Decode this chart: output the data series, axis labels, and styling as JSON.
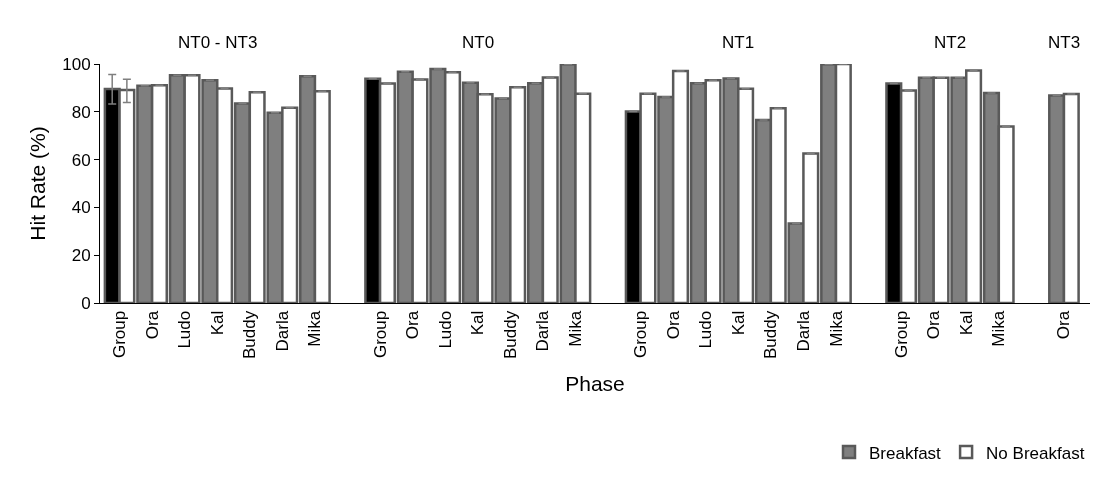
{
  "chart_data": {
    "type": "bar",
    "xlabel": "Phase",
    "ylabel": "Hit Rate (%)",
    "annotations": [
      "NT0 - NT3",
      "NT0",
      "NT1",
      "NT2",
      "NT3"
    ],
    "categories": [
      "Group",
      "Ora",
      "Ludo",
      "Kal",
      "Buddy",
      "Darla",
      "Mika",
      null,
      "Group",
      "Ora",
      "Ludo",
      "Kal",
      "Buddy",
      "Darla",
      "Mika",
      null,
      "Group",
      "Ora",
      "Ludo",
      "Kal",
      "Buddy",
      "Darla",
      "Mika",
      null,
      "Group",
      "Ora",
      "Kal",
      "Mika",
      null,
      "Ora"
    ],
    "series": [
      {
        "name": "Breakfast",
        "color": "#7f7f7f",
        "colors": [
          "#000000",
          "#7f7f7f",
          "#7f7f7f",
          "#7f7f7f",
          "#7f7f7f",
          "#7f7f7f",
          "#7f7f7f",
          "#7f7f7f",
          "#000000",
          "#7f7f7f",
          "#7f7f7f",
          "#7f7f7f",
          "#7f7f7f",
          "#7f7f7f",
          "#7f7f7f",
          "#7f7f7f",
          "#000000",
          "#7f7f7f",
          "#7f7f7f",
          "#7f7f7f",
          "#7f7f7f",
          "#7f7f7f",
          "#7f7f7f",
          "#7f7f7f",
          "#000000",
          "#7f7f7f",
          "#7f7f7f",
          "#7f7f7f",
          "#7f7f7f",
          "#7f7f7f"
        ],
        "values": [
          89.5,
          90.9,
          95.3,
          93.2,
          83.5,
          79.6,
          94.9,
          null,
          93.8,
          96.8,
          97.9,
          92.2,
          85.6,
          91.9,
          99.9,
          null,
          80.1,
          86.2,
          91.9,
          93.9,
          76.6,
          33.3,
          99.9,
          null,
          91.8,
          94.2,
          94.2,
          87.9,
          null,
          86.8
        ],
        "errors": [
          [
            83.3,
            95.6
          ],
          null,
          null,
          null,
          null,
          null,
          null,
          null,
          null,
          null,
          null,
          null,
          null,
          null,
          null,
          null,
          null,
          null,
          null,
          null,
          null,
          null,
          null,
          null,
          null,
          null,
          null,
          null,
          null,
          null
        ]
      },
      {
        "name": "No Breakfast",
        "color": "#ffffff",
        "values": [
          89.1,
          91.1,
          95.3,
          89.7,
          88.2,
          81.7,
          88.6,
          null,
          91.8,
          93.5,
          96.5,
          87.3,
          90.3,
          94.3,
          87.6,
          null,
          87.6,
          97.1,
          93.2,
          89.6,
          81.5,
          62.6,
          100,
          null,
          88.9,
          94.2,
          97.3,
          73.8,
          null,
          87.4
        ],
        "errors": [
          [
            83.9,
            93.6
          ],
          null,
          null,
          null,
          null,
          null,
          null,
          null,
          null,
          null,
          null,
          null,
          null,
          null,
          null,
          null,
          null,
          null,
          null,
          null,
          null,
          null,
          null,
          null,
          null,
          null,
          null,
          null,
          null,
          null
        ]
      }
    ],
    "ylim": [
      0,
      100
    ],
    "yticks": [
      0,
      20,
      40,
      60,
      80,
      100
    ],
    "grid": false,
    "legend": "bottom right"
  }
}
